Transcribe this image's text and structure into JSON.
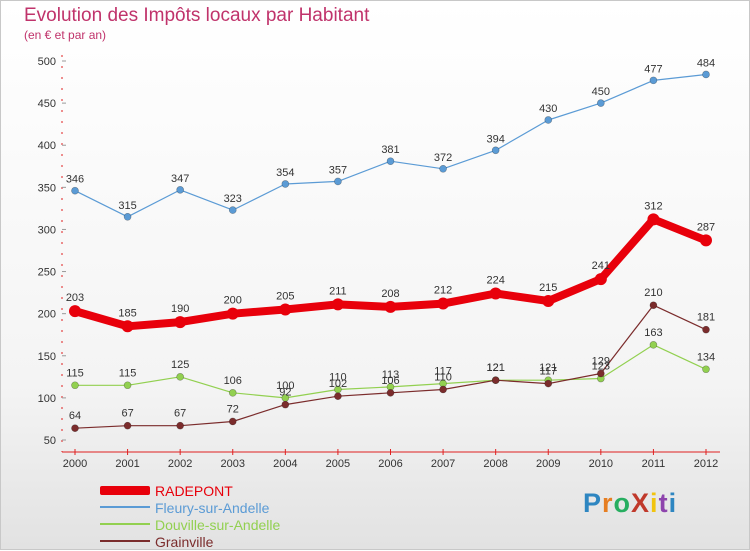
{
  "header": {
    "title": "Evolution des Impôts locaux par Habitant",
    "subtitle": "(en € et par an)"
  },
  "logo": {
    "text": "ProXiti",
    "letter_colors": [
      "#2e86c1",
      "#e67e22",
      "#27ae60",
      "#c0392b",
      "#f1c40f",
      "#8e44ad",
      "#2e86c1"
    ]
  },
  "chart_data": {
    "type": "line",
    "title": "Evolution des Impôts locaux par Habitant",
    "subtitle": "(en € et par an)",
    "xlabel": "",
    "ylabel": "",
    "x": [
      "2000",
      "2001",
      "2002",
      "2003",
      "2004",
      "2005",
      "2006",
      "2007",
      "2008",
      "2009",
      "2010",
      "2011",
      "2012"
    ],
    "ylim": [
      50,
      500
    ],
    "yticks": [
      50,
      100,
      150,
      200,
      250,
      300,
      350,
      400,
      450,
      500
    ],
    "grid": false,
    "legend_position": "bottom-left",
    "series": [
      {
        "name": "RADEPONT",
        "color": "#e8000b",
        "values": [
          203,
          185,
          190,
          200,
          205,
          211,
          208,
          212,
          224,
          215,
          241,
          312,
          287
        ]
      },
      {
        "name": "Fleury-sur-Andelle",
        "color": "#5b9bd5",
        "values": [
          346,
          315,
          347,
          323,
          354,
          357,
          381,
          372,
          394,
          430,
          450,
          477,
          484
        ]
      },
      {
        "name": "Douville-sur-Andelle",
        "color": "#92d050",
        "values": [
          115,
          115,
          125,
          106,
          100,
          110,
          113,
          117,
          121,
          121,
          123,
          163,
          134
        ]
      },
      {
        "name": "Grainville",
        "color": "#7b2c2c",
        "values": [
          64,
          67,
          67,
          72,
          92,
          102,
          106,
          110,
          121,
          117,
          129,
          210,
          181
        ]
      }
    ]
  }
}
